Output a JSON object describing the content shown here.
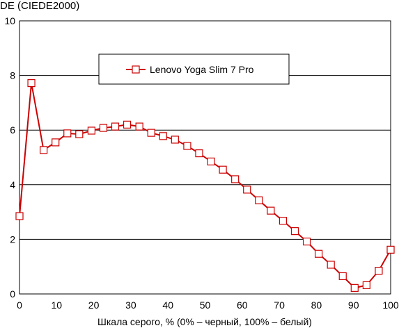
{
  "chart_data": {
    "type": "line",
    "title": "",
    "ylabel": "DE (CIEDE2000)",
    "xlabel": "Шкала серого, % (0% – черный, 100% – белый)",
    "xlim": [
      0,
      100
    ],
    "ylim": [
      0,
      10
    ],
    "x_ticks": [
      "0",
      "10",
      "20",
      "30",
      "40",
      "50",
      "60",
      "70",
      "80",
      "90",
      "100"
    ],
    "y_ticks": [
      "0",
      "2",
      "4",
      "6",
      "8",
      "10"
    ],
    "grid": "horizontal",
    "legend_position": "top-center",
    "series": [
      {
        "name": "Lenovo Yoga Slim 7 Pro",
        "color": "#cc0000",
        "marker": "square",
        "x": [
          0,
          3.2,
          6.5,
          9.7,
          12.9,
          16.1,
          19.4,
          22.6,
          25.8,
          29.0,
          32.3,
          35.5,
          38.7,
          41.9,
          45.2,
          48.4,
          51.6,
          54.8,
          58.1,
          61.3,
          64.5,
          67.7,
          71.0,
          74.2,
          77.4,
          80.6,
          83.9,
          87.1,
          90.3,
          93.5,
          96.8,
          100
        ],
        "y": [
          2.85,
          7.72,
          5.27,
          5.55,
          5.88,
          5.85,
          5.98,
          6.08,
          6.13,
          6.2,
          6.13,
          5.9,
          5.78,
          5.65,
          5.42,
          5.15,
          4.85,
          4.55,
          4.2,
          3.82,
          3.43,
          3.05,
          2.68,
          2.3,
          1.92,
          1.47,
          1.07,
          0.65,
          0.22,
          0.32,
          0.85,
          1.62
        ]
      }
    ]
  }
}
